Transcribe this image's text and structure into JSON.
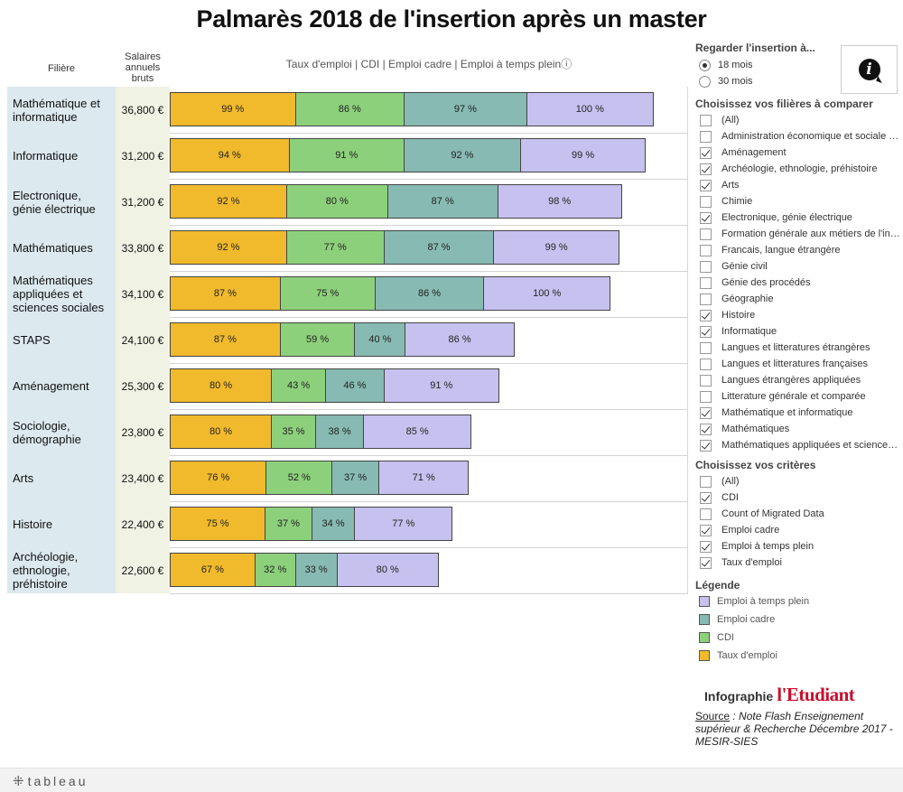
{
  "title": "Palmarès 2018 de l'insertion après un master",
  "headers": {
    "filiere": "Filière",
    "salaire": "Salaires annuels bruts",
    "measures": "Taux d'emploi | CDI | Emploi cadre | Emploi à temps pleinⓘ"
  },
  "colors": {
    "taux_emploi": "#f0ba2c",
    "cdi": "#8dd07c",
    "emploi_cadre": "#87bab2",
    "temps_plein": "#c7c1ef",
    "filiere_bg": "#dce9ef",
    "salaire_bg": "#f0f3e4"
  },
  "chart_data": {
    "type": "bar",
    "orientation": "horizontal",
    "stacked": true,
    "categories": [
      "Mathématique et informatique",
      "Informatique",
      "Electronique, génie électrique",
      "Mathématiques",
      "Mathématiques appliquées et sciences sociales",
      "STAPS",
      "Aménagement",
      "Sociologie, démographie",
      "Arts",
      "Histoire",
      "Archéologie, ethnologie, préhistoire"
    ],
    "salaires": [
      "36,800 €",
      "31,200 €",
      "31,200 €",
      "33,800 €",
      "34,100 €",
      "24,100 €",
      "25,300 €",
      "23,800 €",
      "23,400 €",
      "22,400 €",
      "22,600 €"
    ],
    "series": [
      {
        "name": "Taux d'emploi",
        "color": "#f0ba2c",
        "values": [
          99,
          94,
          92,
          92,
          87,
          87,
          80,
          80,
          76,
          75,
          67
        ]
      },
      {
        "name": "CDI",
        "color": "#8dd07c",
        "values": [
          86,
          91,
          80,
          77,
          75,
          59,
          43,
          35,
          52,
          37,
          32
        ]
      },
      {
        "name": "Emploi cadre",
        "color": "#87bab2",
        "values": [
          97,
          92,
          87,
          87,
          86,
          40,
          46,
          38,
          37,
          34,
          33
        ]
      },
      {
        "name": "Emploi à temps plein",
        "color": "#c7c1ef",
        "values": [
          100,
          99,
          98,
          99,
          100,
          86,
          91,
          85,
          71,
          77,
          80
        ]
      }
    ],
    "unit": "%",
    "xlim": [
      0,
      400
    ]
  },
  "panel": {
    "period_title": "Regarder l'insertion à...",
    "periods": [
      {
        "label": "18 mois",
        "selected": true
      },
      {
        "label": "30 mois",
        "selected": false
      }
    ],
    "filieres_title": "Choisissez vos filières à comparer",
    "filieres": [
      {
        "label": "(All)",
        "checked": false
      },
      {
        "label": "Administration économique et sociale (AES)",
        "checked": false
      },
      {
        "label": "Aménagement",
        "checked": true
      },
      {
        "label": "Archéologie, ethnologie, préhistoire",
        "checked": true
      },
      {
        "label": "Arts",
        "checked": true
      },
      {
        "label": "Chimie",
        "checked": false
      },
      {
        "label": "Electronique, génie électrique",
        "checked": true
      },
      {
        "label": "Formation générale aux métiers de l'ingénieur",
        "checked": false
      },
      {
        "label": "Francais, langue étrangère",
        "checked": false
      },
      {
        "label": "Génie civil",
        "checked": false
      },
      {
        "label": "Génie des procédés",
        "checked": false
      },
      {
        "label": "Géographie",
        "checked": false
      },
      {
        "label": "Histoire",
        "checked": true
      },
      {
        "label": "Informatique",
        "checked": true
      },
      {
        "label": "Langues et litteratures étrangères",
        "checked": false
      },
      {
        "label": "Langues et litteratures françaises",
        "checked": false
      },
      {
        "label": "Langues étrangères appliquées",
        "checked": false
      },
      {
        "label": "Litterature générale et comparée",
        "checked": false
      },
      {
        "label": "Mathématique et informatique",
        "checked": true
      },
      {
        "label": "Mathématiques",
        "checked": true
      },
      {
        "label": "Mathématiques appliquées et sciences sociales",
        "checked": true
      }
    ],
    "criteres_title": "Choisissez vos critères",
    "criteres": [
      {
        "label": "(All)",
        "checked": false
      },
      {
        "label": "CDI",
        "checked": true
      },
      {
        "label": "Count of Migrated Data",
        "checked": false
      },
      {
        "label": "Emploi cadre",
        "checked": true
      },
      {
        "label": "Emploi à temps plein",
        "checked": true
      },
      {
        "label": "Taux d'emploi",
        "checked": true
      }
    ],
    "legende_title": "Légende",
    "legende": [
      {
        "label": "Emploi à temps plein",
        "color": "#c7c1ef"
      },
      {
        "label": "Emploi cadre",
        "color": "#87bab2"
      },
      {
        "label": "CDI",
        "color": "#8dd07c"
      },
      {
        "label": "Taux d'emploi",
        "color": "#f0ba2c"
      }
    ]
  },
  "brand": {
    "prefix": "Infographie",
    "logo": "l'Etudiant"
  },
  "source": {
    "label": "Source",
    "text": " : Note Flash Enseignement supérieur & Recherche Décembre 2017 - MESIR-SIES"
  },
  "footer": {
    "logo_text": "tableau"
  },
  "icons": {
    "info": "info-icon",
    "tableau": "tableau-logo-icon"
  }
}
